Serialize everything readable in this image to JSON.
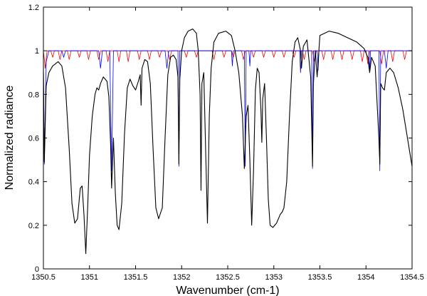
{
  "chart_data": {
    "type": "line",
    "title": "",
    "xlabel": "Wavenumber (cm-1)",
    "ylabel": "Normalized radiance",
    "xlim": [
      1350.5,
      1354.5
    ],
    "ylim": [
      0,
      1.2
    ],
    "x_ticks": [
      1350.5,
      1351,
      1351.5,
      1352,
      1352.5,
      1353,
      1353.5,
      1354,
      1354.5
    ],
    "y_ticks": [
      0,
      0.2,
      0.4,
      0.6,
      0.8,
      1,
      1.2
    ],
    "x_tick_labels": [
      "1350.5",
      "1351",
      "1351.5",
      "1352",
      "1352.5",
      "1353",
      "1353.5",
      "1354",
      "1354.5"
    ],
    "y_tick_labels": [
      "0",
      "0.2",
      "0.4",
      "0.6",
      "0.8",
      "1",
      "1.2"
    ],
    "grid": false,
    "legend": "none",
    "series": [
      {
        "color": "#ff0000",
        "points": [
          [
            1350.5,
            1.0
          ],
          [
            1350.52,
            0.92
          ],
          [
            1350.54,
            1.0
          ],
          [
            1350.58,
            1.0
          ],
          [
            1350.6,
            0.97
          ],
          [
            1350.62,
            1.0
          ],
          [
            1350.66,
            1.0
          ],
          [
            1350.68,
            0.96
          ],
          [
            1350.7,
            1.0
          ],
          [
            1350.76,
            1.0
          ],
          [
            1350.78,
            0.96
          ],
          [
            1350.8,
            1.0
          ],
          [
            1350.87,
            1.0
          ],
          [
            1350.89,
            0.97
          ],
          [
            1350.91,
            1.0
          ],
          [
            1350.97,
            1.0
          ],
          [
            1350.99,
            0.96
          ],
          [
            1351.01,
            1.0
          ],
          [
            1351.08,
            1.0
          ],
          [
            1351.1,
            0.96
          ],
          [
            1351.12,
            1.0
          ],
          [
            1351.18,
            1.0
          ],
          [
            1351.2,
            0.95
          ],
          [
            1351.22,
            1.0
          ],
          [
            1351.3,
            1.0
          ],
          [
            1351.32,
            0.95
          ],
          [
            1351.34,
            1.0
          ],
          [
            1351.4,
            1.0
          ],
          [
            1351.42,
            0.95
          ],
          [
            1351.44,
            1.0
          ],
          [
            1351.52,
            1.0
          ],
          [
            1351.54,
            0.96
          ],
          [
            1351.56,
            1.0
          ],
          [
            1351.63,
            1.0
          ],
          [
            1351.65,
            0.96
          ],
          [
            1351.67,
            1.0
          ],
          [
            1351.74,
            1.0
          ],
          [
            1351.76,
            0.97
          ],
          [
            1351.78,
            1.0
          ],
          [
            1351.85,
            1.0
          ],
          [
            1351.87,
            0.96
          ],
          [
            1351.89,
            1.0
          ],
          [
            1352.03,
            1.0
          ],
          [
            1352.05,
            0.97
          ],
          [
            1352.07,
            1.0
          ],
          [
            1352.14,
            1.0
          ],
          [
            1352.16,
            0.97
          ],
          [
            1352.18,
            1.0
          ],
          [
            1352.33,
            1.0
          ],
          [
            1352.35,
            0.96
          ],
          [
            1352.37,
            1.0
          ],
          [
            1352.44,
            1.0
          ],
          [
            1352.46,
            0.97
          ],
          [
            1352.48,
            1.0
          ],
          [
            1352.54,
            1.0
          ],
          [
            1352.56,
            0.97
          ],
          [
            1352.58,
            1.0
          ],
          [
            1352.65,
            1.0
          ],
          [
            1352.67,
            0.96
          ],
          [
            1352.69,
            1.0
          ],
          [
            1352.76,
            1.0
          ],
          [
            1352.78,
            0.97
          ],
          [
            1352.8,
            1.0
          ],
          [
            1352.87,
            1.0
          ],
          [
            1352.89,
            0.97
          ],
          [
            1352.91,
            1.0
          ],
          [
            1352.98,
            1.0
          ],
          [
            1353.0,
            0.97
          ],
          [
            1353.02,
            1.0
          ],
          [
            1353.09,
            1.0
          ],
          [
            1353.11,
            0.97
          ],
          [
            1353.13,
            1.0
          ],
          [
            1353.2,
            1.0
          ],
          [
            1353.22,
            0.97
          ],
          [
            1353.24,
            1.0
          ],
          [
            1353.31,
            1.0
          ],
          [
            1353.33,
            0.96
          ],
          [
            1353.35,
            1.0
          ],
          [
            1353.42,
            1.0
          ],
          [
            1353.44,
            0.95
          ],
          [
            1353.46,
            1.0
          ],
          [
            1353.52,
            1.0
          ],
          [
            1353.54,
            0.96
          ],
          [
            1353.56,
            1.0
          ],
          [
            1353.62,
            1.0
          ],
          [
            1353.64,
            0.96
          ],
          [
            1353.66,
            1.0
          ],
          [
            1353.72,
            1.0
          ],
          [
            1353.74,
            0.96
          ],
          [
            1353.76,
            1.0
          ],
          [
            1353.83,
            1.0
          ],
          [
            1353.85,
            0.96
          ],
          [
            1353.87,
            1.0
          ],
          [
            1353.94,
            1.0
          ],
          [
            1353.96,
            0.95
          ],
          [
            1353.98,
            1.0
          ],
          [
            1354.0,
            1.0
          ],
          [
            1354.02,
            0.94
          ],
          [
            1354.04,
            1.0
          ],
          [
            1354.15,
            1.0
          ],
          [
            1354.17,
            0.94
          ],
          [
            1354.19,
            1.0
          ],
          [
            1354.27,
            1.0
          ],
          [
            1354.29,
            0.95
          ],
          [
            1354.31,
            1.0
          ],
          [
            1354.4,
            1.0
          ],
          [
            1354.42,
            0.96
          ],
          [
            1354.44,
            1.0
          ],
          [
            1354.5,
            1.0
          ]
        ]
      },
      {
        "color": "#0000ff",
        "points": [
          [
            1350.5,
            0.98
          ],
          [
            1350.51,
            0.48
          ],
          [
            1350.53,
            0.95
          ],
          [
            1350.56,
            1.0
          ],
          [
            1350.7,
            1.0
          ],
          [
            1350.72,
            0.97
          ],
          [
            1350.74,
            1.0
          ],
          [
            1351.1,
            1.0
          ],
          [
            1351.12,
            0.92
          ],
          [
            1351.14,
            1.0
          ],
          [
            1351.22,
            1.0
          ],
          [
            1351.24,
            0.45
          ],
          [
            1351.26,
            1.0
          ],
          [
            1351.82,
            1.0
          ],
          [
            1351.84,
            0.92
          ],
          [
            1351.86,
            1.0
          ],
          [
            1351.96,
            1.0
          ],
          [
            1351.97,
            0.47
          ],
          [
            1351.98,
            1.0
          ],
          [
            1352.54,
            1.0
          ],
          [
            1352.55,
            0.93
          ],
          [
            1352.56,
            1.0
          ],
          [
            1352.68,
            1.0
          ],
          [
            1352.69,
            0.47
          ],
          [
            1352.7,
            1.0
          ],
          [
            1352.73,
            1.0
          ],
          [
            1352.74,
            0.93
          ],
          [
            1352.75,
            1.0
          ],
          [
            1353.28,
            1.0
          ],
          [
            1353.29,
            0.9
          ],
          [
            1353.3,
            1.0
          ],
          [
            1353.41,
            1.0
          ],
          [
            1353.42,
            0.46
          ],
          [
            1353.43,
            1.0
          ],
          [
            1353.47,
            1.0
          ],
          [
            1353.48,
            0.91
          ],
          [
            1353.49,
            1.0
          ],
          [
            1354.03,
            1.0
          ],
          [
            1354.04,
            0.91
          ],
          [
            1354.05,
            1.0
          ],
          [
            1354.14,
            1.0
          ],
          [
            1354.15,
            0.45
          ],
          [
            1354.16,
            1.0
          ],
          [
            1354.2,
            1.0
          ],
          [
            1354.22,
            0.92
          ],
          [
            1354.24,
            1.0
          ],
          [
            1354.5,
            1.0
          ]
        ]
      },
      {
        "color": "#000000",
        "points": [
          [
            1350.5,
            0.9
          ],
          [
            1350.51,
            0.49
          ],
          [
            1350.53,
            0.84
          ],
          [
            1350.56,
            0.9
          ],
          [
            1350.6,
            0.93
          ],
          [
            1350.66,
            0.95
          ],
          [
            1350.7,
            0.93
          ],
          [
            1350.74,
            0.83
          ],
          [
            1350.78,
            0.55
          ],
          [
            1350.81,
            0.3
          ],
          [
            1350.84,
            0.21
          ],
          [
            1350.87,
            0.23
          ],
          [
            1350.9,
            0.37
          ],
          [
            1350.92,
            0.38
          ],
          [
            1350.94,
            0.25
          ],
          [
            1350.96,
            0.07
          ],
          [
            1350.98,
            0.28
          ],
          [
            1351.0,
            0.52
          ],
          [
            1351.03,
            0.7
          ],
          [
            1351.06,
            0.8
          ],
          [
            1351.08,
            0.83
          ],
          [
            1351.1,
            0.82
          ],
          [
            1351.12,
            0.85
          ],
          [
            1351.15,
            0.88
          ],
          [
            1351.19,
            0.86
          ],
          [
            1351.21,
            0.79
          ],
          [
            1351.23,
            0.56
          ],
          [
            1351.24,
            0.37
          ],
          [
            1351.26,
            0.6
          ],
          [
            1351.28,
            0.35
          ],
          [
            1351.3,
            0.2
          ],
          [
            1351.32,
            0.18
          ],
          [
            1351.35,
            0.3
          ],
          [
            1351.38,
            0.62
          ],
          [
            1351.41,
            0.83
          ],
          [
            1351.44,
            0.87
          ],
          [
            1351.47,
            0.84
          ],
          [
            1351.5,
            0.82
          ],
          [
            1351.53,
            0.86
          ],
          [
            1351.55,
            0.89
          ],
          [
            1351.56,
            0.75
          ],
          [
            1351.57,
            0.92
          ],
          [
            1351.6,
            0.96
          ],
          [
            1351.63,
            0.95
          ],
          [
            1351.66,
            0.85
          ],
          [
            1351.69,
            0.55
          ],
          [
            1351.72,
            0.28
          ],
          [
            1351.75,
            0.23
          ],
          [
            1351.79,
            0.28
          ],
          [
            1351.82,
            0.6
          ],
          [
            1351.85,
            0.89
          ],
          [
            1351.88,
            0.97
          ],
          [
            1351.91,
            0.98
          ],
          [
            1351.94,
            0.96
          ],
          [
            1351.96,
            0.88
          ],
          [
            1351.97,
            0.48
          ],
          [
            1351.98,
            0.87
          ],
          [
            1352.0,
            1.0
          ],
          [
            1352.03,
            1.06
          ],
          [
            1352.07,
            1.09
          ],
          [
            1352.12,
            1.1
          ],
          [
            1352.16,
            1.08
          ],
          [
            1352.18,
            1.0
          ],
          [
            1352.2,
            0.8
          ],
          [
            1352.21,
            0.36
          ],
          [
            1352.22,
            0.85
          ],
          [
            1352.24,
            0.9
          ],
          [
            1352.26,
            0.55
          ],
          [
            1352.28,
            0.21
          ],
          [
            1352.3,
            0.7
          ],
          [
            1352.32,
            0.92
          ],
          [
            1352.35,
            1.04
          ],
          [
            1352.4,
            1.08
          ],
          [
            1352.48,
            1.09
          ],
          [
            1352.54,
            1.07
          ],
          [
            1352.58,
            1.0
          ],
          [
            1352.62,
            0.9
          ],
          [
            1352.66,
            0.7
          ],
          [
            1352.68,
            0.46
          ],
          [
            1352.7,
            0.7
          ],
          [
            1352.72,
            0.75
          ],
          [
            1352.74,
            0.5
          ],
          [
            1352.76,
            0.2
          ],
          [
            1352.78,
            0.45
          ],
          [
            1352.8,
            0.82
          ],
          [
            1352.82,
            0.92
          ],
          [
            1352.84,
            0.9
          ],
          [
            1352.86,
            0.73
          ],
          [
            1352.87,
            0.58
          ],
          [
            1352.88,
            0.78
          ],
          [
            1352.9,
            0.85
          ],
          [
            1352.92,
            0.6
          ],
          [
            1352.94,
            0.32
          ],
          [
            1352.96,
            0.2
          ],
          [
            1352.99,
            0.19
          ],
          [
            1353.03,
            0.21
          ],
          [
            1353.07,
            0.25
          ],
          [
            1353.09,
            0.26
          ],
          [
            1353.11,
            0.28
          ],
          [
            1353.14,
            0.4
          ],
          [
            1353.17,
            0.7
          ],
          [
            1353.2,
            0.95
          ],
          [
            1353.23,
            1.04
          ],
          [
            1353.26,
            1.06
          ],
          [
            1353.29,
            1.0
          ],
          [
            1353.3,
            0.92
          ],
          [
            1353.32,
            1.02
          ],
          [
            1353.36,
            1.05
          ],
          [
            1353.4,
            0.88
          ],
          [
            1353.42,
            0.47
          ],
          [
            1353.43,
            0.85
          ],
          [
            1353.45,
            1.0
          ],
          [
            1353.47,
            0.88
          ],
          [
            1353.5,
            1.07
          ],
          [
            1353.6,
            1.09
          ],
          [
            1353.7,
            1.08
          ],
          [
            1353.8,
            1.06
          ],
          [
            1353.9,
            1.04
          ],
          [
            1353.98,
            1.01
          ],
          [
            1354.02,
            0.97
          ],
          [
            1354.04,
            0.9
          ],
          [
            1354.06,
            0.97
          ],
          [
            1354.1,
            0.93
          ],
          [
            1354.14,
            0.6
          ],
          [
            1354.15,
            0.48
          ],
          [
            1354.16,
            0.85
          ],
          [
            1354.18,
            0.83
          ],
          [
            1354.2,
            0.82
          ],
          [
            1354.22,
            0.9
          ],
          [
            1354.26,
            0.92
          ],
          [
            1354.3,
            0.9
          ],
          [
            1354.35,
            0.83
          ],
          [
            1354.4,
            0.73
          ],
          [
            1354.45,
            0.6
          ],
          [
            1354.5,
            0.47
          ]
        ]
      }
    ]
  }
}
